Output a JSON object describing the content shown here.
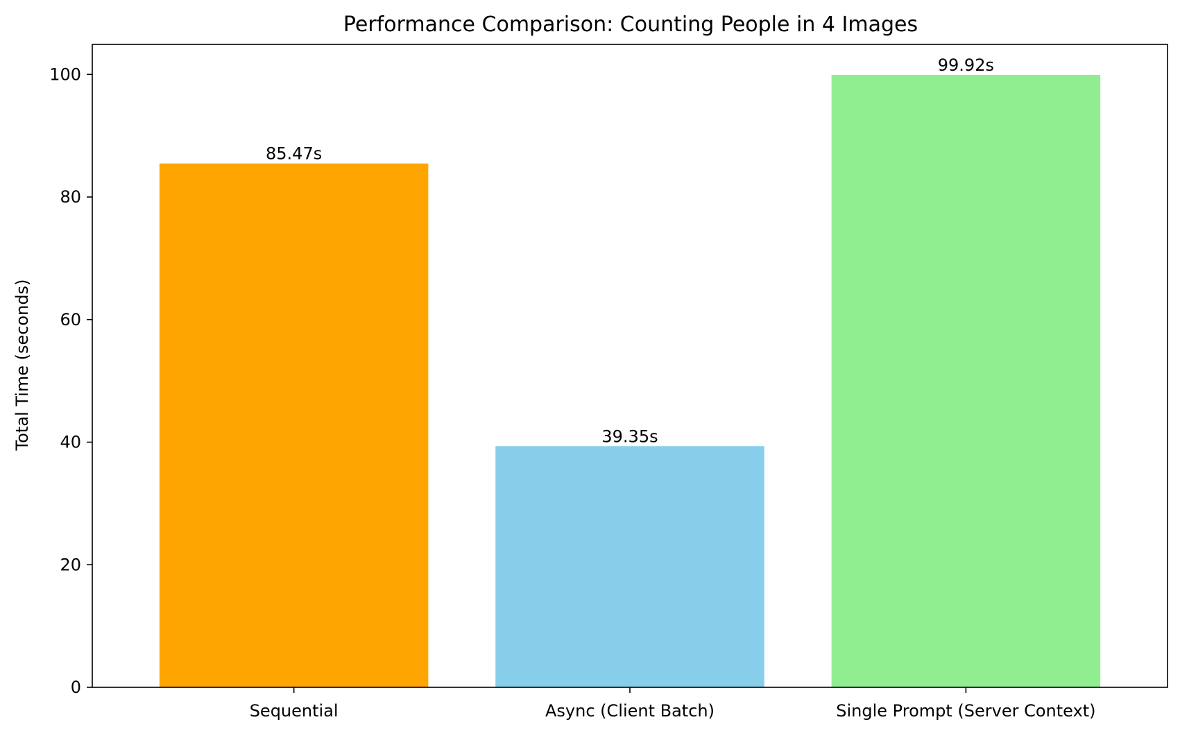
{
  "chart_data": {
    "type": "bar",
    "title": "Performance Comparison: Counting People in 4 Images",
    "xlabel": "",
    "ylabel": "Total Time (seconds)",
    "categories": [
      "Sequential",
      "Async (Client Batch)",
      "Single Prompt (Server Context)"
    ],
    "values": [
      85.47,
      39.35,
      99.92
    ],
    "data_labels": [
      "85.47s",
      "39.35s",
      "99.92s"
    ],
    "colors": [
      "#ffa500",
      "#87ceeb",
      "#90ee90"
    ],
    "ylim": [
      0,
      104.9
    ],
    "yticks": [
      0,
      20,
      40,
      60,
      80,
      100
    ],
    "grid": false,
    "legend": "none"
  }
}
